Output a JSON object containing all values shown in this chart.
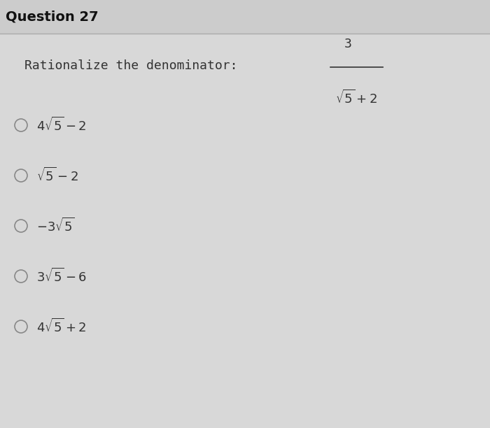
{
  "title": "Question 27",
  "bg_color": "#d8d8d8",
  "content_bg": "#d8d8d8",
  "title_font_size": 14,
  "title_font_weight": "bold",
  "title_font_family": "sans-serif",
  "question_text": "Rationalize the denominator:",
  "question_font_size": 13,
  "question_font_family": "monospace",
  "fraction_numerator": "3",
  "fraction_denominator": "√5 + 2",
  "options": [
    "4√5−2",
    "√5−2",
    "−3√5",
    "3√5−6",
    "4√5+2"
  ],
  "option_display": [
    "$4\\sqrt{5}-2$",
    "$\\sqrt{5}-2$",
    "$-3\\sqrt{5}$",
    "$3\\sqrt{5}-6$",
    "$4\\sqrt{5}+2$"
  ],
  "circle_color": "#888888",
  "text_color": "#333333",
  "option_font_size": 13,
  "header_line_color": "#aaaaaa"
}
